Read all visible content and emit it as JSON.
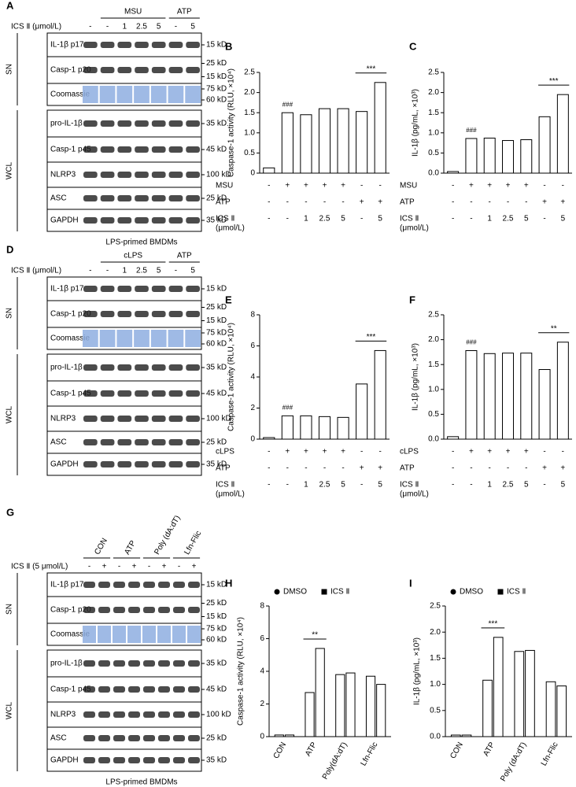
{
  "blots": [
    {
      "letter": "A",
      "groups": [
        "MSU",
        "ATP"
      ],
      "treatment_label": "ICS Ⅱ (μmol/L)",
      "lanes": [
        "-",
        "-",
        "1",
        "2.5",
        "5",
        "-",
        "5"
      ],
      "sections": [
        {
          "name": "SN",
          "rows": [
            {
              "label": "IL-1β p17",
              "markers": [
                "15 kD"
              ]
            },
            {
              "label": "Casp-1 p20",
              "markers": [
                "25 kD",
                "15 kD"
              ]
            },
            {
              "label": "Coomassie",
              "markers": [
                "75 kD",
                "60 kD"
              ]
            }
          ]
        },
        {
          "name": "WCL",
          "rows": [
            {
              "label": "pro-IL-1β",
              "markers": [
                "35 kD"
              ]
            },
            {
              "label": "Casp-1 p45",
              "markers": [
                "45 kD"
              ]
            },
            {
              "label": "NLRP3",
              "markers": [
                "100 kD"
              ]
            },
            {
              "label": "ASC",
              "markers": [
                "25 kD"
              ]
            },
            {
              "label": "GAPDH",
              "markers": [
                "35 kD"
              ]
            }
          ]
        }
      ],
      "footer": "LPS-primed BMDMs"
    },
    {
      "letter": "D",
      "groups": [
        "cLPS",
        "ATP"
      ],
      "treatment_label": "ICS Ⅱ (μmol/L)",
      "lanes": [
        "-",
        "-",
        "1",
        "2.5",
        "5",
        "-",
        "5"
      ],
      "sections": [
        {
          "name": "SN",
          "rows": [
            {
              "label": "IL-1β p17",
              "markers": [
                "15 kD"
              ]
            },
            {
              "label": "Casp-1 p20",
              "markers": [
                "25 kD",
                "15 kD"
              ]
            },
            {
              "label": "Coomassie",
              "markers": [
                "75 kD",
                "60 kD"
              ]
            }
          ]
        },
        {
          "name": "WCL",
          "rows": [
            {
              "label": "pro-IL-1β",
              "markers": [
                "35 kD"
              ]
            },
            {
              "label": "Casp-1 p45",
              "markers": [
                "45 kD"
              ]
            },
            {
              "label": "NLRP3",
              "markers": [
                "100 kD"
              ]
            },
            {
              "label": "ASC",
              "markers": [
                "25 kD"
              ]
            },
            {
              "label": "GAPDH",
              "markers": [
                "35 kD"
              ]
            }
          ]
        }
      ]
    },
    {
      "letter": "G",
      "groups": [
        "CON",
        "ATP",
        "Poly (dA:dT)",
        "Lfn-Flic"
      ],
      "treatment_label": "ICS Ⅱ (5 μmol/L)",
      "lanes": [
        "-",
        "+",
        "-",
        "+",
        "-",
        "+",
        "-",
        "+"
      ],
      "sections": [
        {
          "name": "SN",
          "rows": [
            {
              "label": "IL-1β p17",
              "markers": [
                "15 kD"
              ]
            },
            {
              "label": "Casp-1 p20",
              "markers": [
                "25 kD",
                "15 kD"
              ]
            },
            {
              "label": "Coomassie",
              "markers": [
                "75 kD",
                "60 kD"
              ]
            }
          ]
        },
        {
          "name": "WCL",
          "rows": [
            {
              "label": "pro-IL-1β",
              "markers": [
                "35 kD"
              ]
            },
            {
              "label": "Casp-1 p45",
              "markers": [
                "45 kD"
              ]
            },
            {
              "label": "NLRP3",
              "markers": [
                "100 kD"
              ]
            },
            {
              "label": "ASC",
              "markers": [
                "25 kD"
              ]
            },
            {
              "label": "GAPDH",
              "markers": [
                "35 kD"
              ]
            }
          ]
        }
      ],
      "footer": "LPS-primed BMDMs"
    }
  ],
  "chart_data": [
    {
      "letter": "B",
      "type": "bar",
      "ylabel": "Caspase-1 activity (RLU, ×10⁴)",
      "ylim": [
        0,
        2.5
      ],
      "yticks": [
        0,
        0.5,
        {
          "value": 1,
          "label": "1.0"
        },
        1.5,
        {
          "value": 2,
          "label": "2.0"
        },
        2.5
      ],
      "values": [
        0.13,
        1.5,
        1.45,
        1.6,
        1.6,
        1.53,
        2.25
      ],
      "color": "#ffffff",
      "conditions": [
        {
          "label": [
            "MSU"
          ],
          "values": [
            "-",
            "+",
            "+",
            "+",
            "+",
            "-",
            "-"
          ]
        },
        {
          "label": [
            "ATP"
          ],
          "values": [
            "-",
            "-",
            "-",
            "-",
            "-",
            "+",
            "+"
          ]
        },
        {
          "label": [
            "ICS Ⅱ",
            "(μmol/L)"
          ],
          "values": [
            "-",
            "-",
            "1",
            "2.5",
            "5",
            "-",
            "5"
          ]
        }
      ],
      "annotations": [
        {
          "text": "###",
          "at": [
            1
          ]
        },
        {
          "text": "***",
          "at": [
            5,
            6
          ]
        }
      ]
    },
    {
      "letter": "C",
      "type": "bar",
      "ylabel": "IL-1β (pg/mL, ×10³)",
      "ylim": [
        0,
        2.5
      ],
      "yticks": [
        {
          "value": 0,
          "label": "0.0"
        },
        0.5,
        {
          "value": 1,
          "label": "1.0"
        },
        1.5,
        {
          "value": 2,
          "label": "2.0"
        },
        2.5
      ],
      "values": [
        0.04,
        0.86,
        0.87,
        0.81,
        0.83,
        1.4,
        1.95
      ],
      "color": "#ffffff",
      "conditions": [
        {
          "label": [
            "MSU"
          ],
          "values": [
            "-",
            "+",
            "+",
            "+",
            "+",
            "-",
            "-"
          ]
        },
        {
          "label": [
            "ATP"
          ],
          "values": [
            "-",
            "-",
            "-",
            "-",
            "-",
            "+",
            "+"
          ]
        },
        {
          "label": [
            "ICS Ⅱ",
            "(μmol/L)"
          ],
          "values": [
            "-",
            "-",
            "1",
            "2.5",
            "5",
            "-",
            "5"
          ]
        }
      ],
      "annotations": [
        {
          "text": "###",
          "at": [
            1
          ]
        },
        {
          "text": "***",
          "at": [
            5,
            6
          ]
        }
      ]
    },
    {
      "letter": "E",
      "type": "bar",
      "ylabel": "Caspase-1 activity (RLU, ×10⁴)",
      "ylim": [
        0,
        8
      ],
      "yticks": [
        0,
        2,
        4,
        6,
        8
      ],
      "values": [
        0.1,
        1.5,
        1.5,
        1.45,
        1.4,
        3.55,
        5.7
      ],
      "color": "#ffffff",
      "conditions": [
        {
          "label": [
            "cLPS"
          ],
          "values": [
            "-",
            "+",
            "+",
            "+",
            "+",
            "-",
            "-"
          ]
        },
        {
          "label": [
            "ATP"
          ],
          "values": [
            "-",
            "-",
            "-",
            "-",
            "-",
            "+",
            "+"
          ]
        },
        {
          "label": [
            "ICS Ⅱ",
            "(μmol/L)"
          ],
          "values": [
            "-",
            "-",
            "1",
            "2.5",
            "5",
            "-",
            "5"
          ]
        }
      ],
      "annotations": [
        {
          "text": "###",
          "at": [
            1
          ]
        },
        {
          "text": "***",
          "at": [
            5,
            6
          ]
        }
      ]
    },
    {
      "letter": "F",
      "type": "bar",
      "ylabel": "IL-1β (pg/mL, ×10³)",
      "ylim": [
        0,
        2.5
      ],
      "yticks": [
        {
          "value": 0,
          "label": "0.0"
        },
        0.5,
        {
          "value": 1,
          "label": "1.0"
        },
        1.5,
        {
          "value": 2,
          "label": "2.0"
        },
        2.5
      ],
      "values": [
        0.05,
        1.78,
        1.72,
        1.73,
        1.73,
        1.4,
        1.95
      ],
      "color": "#ffffff",
      "conditions": [
        {
          "label": [
            "cLPS"
          ],
          "values": [
            "-",
            "+",
            "+",
            "+",
            "+",
            "-",
            "-"
          ]
        },
        {
          "label": [
            "ATP"
          ],
          "values": [
            "-",
            "-",
            "-",
            "-",
            "-",
            "+",
            "+"
          ]
        },
        {
          "label": [
            "ICS Ⅱ",
            "(μmol/L)"
          ],
          "values": [
            "-",
            "-",
            "1",
            "2.5",
            "5",
            "-",
            "5"
          ]
        }
      ],
      "annotations": [
        {
          "text": "###",
          "at": [
            1
          ]
        },
        {
          "text": "**",
          "at": [
            5,
            6
          ]
        }
      ]
    },
    {
      "letter": "H",
      "type": "grouped_bar",
      "ylabel": "Caspase-1 activity (RLU, ×10⁴)",
      "ylim": [
        0,
        8
      ],
      "yticks": [
        0,
        2,
        4,
        6,
        8
      ],
      "categories": [
        "CON",
        "ATP",
        "Poly(dA:dT)",
        "Lfn-Flic"
      ],
      "series": [
        {
          "name": "DMSO",
          "marker": "circle",
          "color": "#ffffff",
          "values": [
            0.1,
            2.7,
            3.8,
            3.7
          ]
        },
        {
          "name": "ICS Ⅱ",
          "marker": "square",
          "color": "#ffffff",
          "values": [
            0.1,
            5.4,
            3.9,
            3.2
          ]
        }
      ],
      "annotations": [
        {
          "text": "**",
          "at": [
            1
          ]
        }
      ]
    },
    {
      "letter": "I",
      "type": "grouped_bar",
      "ylabel": "IL-1β (pg/mL, ×10³)",
      "ylim": [
        0,
        2.5
      ],
      "yticks": [
        {
          "value": 0,
          "label": "0.0"
        },
        0.5,
        {
          "value": 1,
          "label": "1.0"
        },
        1.5,
        {
          "value": 2,
          "label": "2.0"
        },
        2.5
      ],
      "categories": [
        "CON",
        "ATP",
        "Poly (dA:dT)",
        "Lfn-Flic"
      ],
      "series": [
        {
          "name": "DMSO",
          "marker": "circle",
          "color": "#ffffff",
          "values": [
            0.03,
            1.08,
            1.63,
            1.05
          ]
        },
        {
          "name": "ICS Ⅱ",
          "marker": "square",
          "color": "#ffffff",
          "values": [
            0.03,
            1.9,
            1.65,
            0.97
          ]
        }
      ],
      "annotations": [
        {
          "text": "***",
          "at": [
            1
          ]
        }
      ]
    }
  ]
}
